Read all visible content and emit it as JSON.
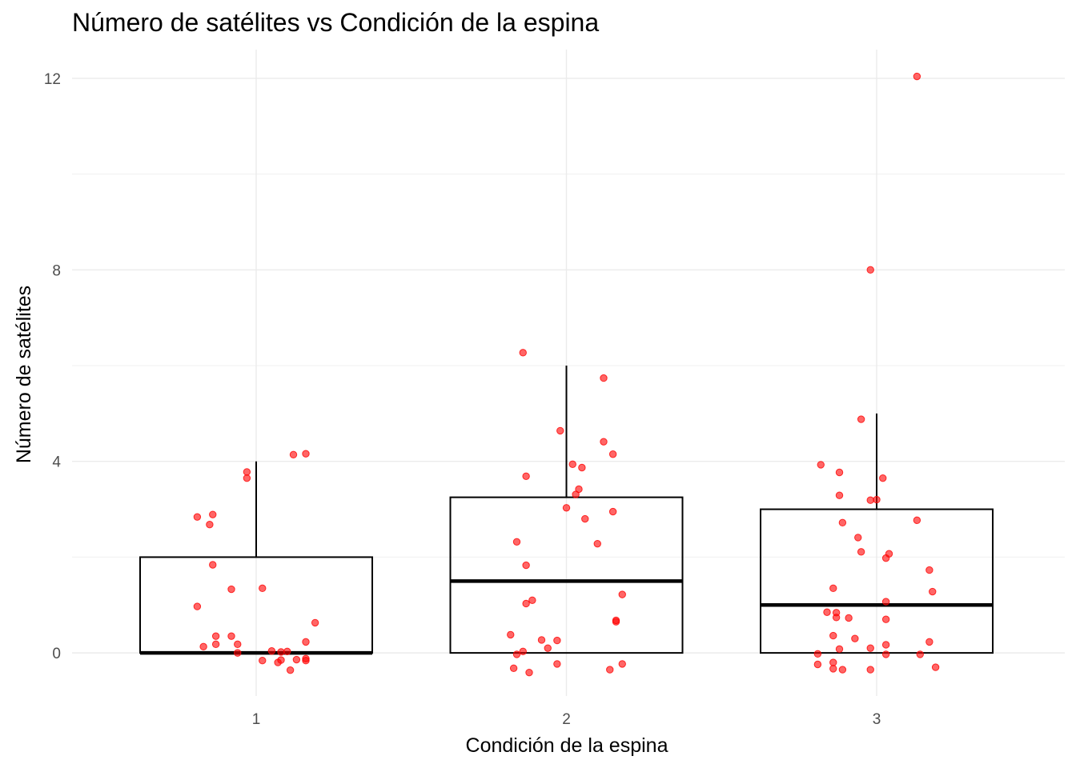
{
  "chart_data": {
    "type": "box",
    "title": "Número de satélites vs Condición de la espina",
    "xlabel": "Condición de la espina",
    "ylabel": "Número de satélites",
    "categories": [
      "1",
      "2",
      "3"
    ],
    "yticks": [
      "0",
      "4",
      "8",
      "12"
    ],
    "ylim": [
      -0.9,
      12.6
    ],
    "grid": true,
    "point_color": "#FF0000",
    "box_stats": [
      {
        "category": "1",
        "min": 0,
        "q1": 0,
        "median": 0,
        "q3": 2,
        "max": 4
      },
      {
        "category": "2",
        "min": 0,
        "q1": 0,
        "median": 1.5,
        "q3": 3.25,
        "max": 6
      },
      {
        "category": "3",
        "min": 0,
        "q1": 0,
        "median": 1,
        "q3": 3,
        "max": 5
      }
    ],
    "points": [
      {
        "x": 0.81,
        "y": 2.84
      },
      {
        "x": 0.86,
        "y": 2.89
      },
      {
        "x": 0.85,
        "y": 2.68
      },
      {
        "x": 0.97,
        "y": 3.78
      },
      {
        "x": 0.97,
        "y": 3.65
      },
      {
        "x": 1.12,
        "y": 4.14
      },
      {
        "x": 1.16,
        "y": 4.16
      },
      {
        "x": 0.86,
        "y": 1.84
      },
      {
        "x": 0.81,
        "y": 0.97
      },
      {
        "x": 0.92,
        "y": 1.33
      },
      {
        "x": 1.02,
        "y": 1.35
      },
      {
        "x": 1.19,
        "y": 0.63
      },
      {
        "x": 0.87,
        "y": 0.35
      },
      {
        "x": 0.92,
        "y": 0.35
      },
      {
        "x": 0.83,
        "y": 0.13
      },
      {
        "x": 0.87,
        "y": 0.18
      },
      {
        "x": 0.94,
        "y": 0.18
      },
      {
        "x": 1.16,
        "y": 0.23
      },
      {
        "x": 0.94,
        "y": 0.0
      },
      {
        "x": 1.05,
        "y": 0.04
      },
      {
        "x": 1.08,
        "y": 0.02
      },
      {
        "x": 1.1,
        "y": 0.03
      },
      {
        "x": 1.02,
        "y": -0.16
      },
      {
        "x": 1.07,
        "y": -0.2
      },
      {
        "x": 1.08,
        "y": -0.15
      },
      {
        "x": 1.13,
        "y": -0.14
      },
      {
        "x": 1.16,
        "y": -0.12
      },
      {
        "x": 1.16,
        "y": -0.16
      },
      {
        "x": 1.11,
        "y": -0.36
      },
      {
        "x": 1.86,
        "y": 6.27
      },
      {
        "x": 2.12,
        "y": 5.74
      },
      {
        "x": 1.98,
        "y": 4.64
      },
      {
        "x": 2.12,
        "y": 4.41
      },
      {
        "x": 2.15,
        "y": 4.15
      },
      {
        "x": 2.02,
        "y": 3.94
      },
      {
        "x": 2.05,
        "y": 3.87
      },
      {
        "x": 1.87,
        "y": 3.69
      },
      {
        "x": 2.04,
        "y": 3.42
      },
      {
        "x": 2.03,
        "y": 3.31
      },
      {
        "x": 2.0,
        "y": 3.03
      },
      {
        "x": 2.15,
        "y": 2.95
      },
      {
        "x": 2.06,
        "y": 2.8
      },
      {
        "x": 1.84,
        "y": 2.32
      },
      {
        "x": 2.1,
        "y": 2.28
      },
      {
        "x": 1.87,
        "y": 1.83
      },
      {
        "x": 2.18,
        "y": 1.22
      },
      {
        "x": 1.89,
        "y": 1.1
      },
      {
        "x": 1.87,
        "y": 1.03
      },
      {
        "x": 2.16,
        "y": 0.68
      },
      {
        "x": 2.16,
        "y": 0.65
      },
      {
        "x": 1.82,
        "y": 0.38
      },
      {
        "x": 1.92,
        "y": 0.27
      },
      {
        "x": 1.97,
        "y": 0.26
      },
      {
        "x": 1.94,
        "y": 0.1
      },
      {
        "x": 1.86,
        "y": 0.03
      },
      {
        "x": 1.84,
        "y": -0.03
      },
      {
        "x": 1.97,
        "y": -0.23
      },
      {
        "x": 2.18,
        "y": -0.23
      },
      {
        "x": 1.83,
        "y": -0.32
      },
      {
        "x": 2.14,
        "y": -0.35
      },
      {
        "x": 1.88,
        "y": -0.41
      },
      {
        "x": 3.13,
        "y": 12.04
      },
      {
        "x": 2.98,
        "y": 8.0
      },
      {
        "x": 2.95,
        "y": 4.88
      },
      {
        "x": 2.82,
        "y": 3.93
      },
      {
        "x": 2.88,
        "y": 3.77
      },
      {
        "x": 3.02,
        "y": 3.65
      },
      {
        "x": 2.88,
        "y": 3.29
      },
      {
        "x": 2.98,
        "y": 3.19
      },
      {
        "x": 3.0,
        "y": 3.2
      },
      {
        "x": 3.13,
        "y": 2.77
      },
      {
        "x": 2.89,
        "y": 2.72
      },
      {
        "x": 2.94,
        "y": 2.41
      },
      {
        "x": 2.95,
        "y": 2.11
      },
      {
        "x": 3.04,
        "y": 2.07
      },
      {
        "x": 3.03,
        "y": 1.98
      },
      {
        "x": 3.17,
        "y": 1.73
      },
      {
        "x": 2.86,
        "y": 1.35
      },
      {
        "x": 3.18,
        "y": 1.28
      },
      {
        "x": 3.03,
        "y": 1.07
      },
      {
        "x": 2.84,
        "y": 0.85
      },
      {
        "x": 2.87,
        "y": 0.84
      },
      {
        "x": 2.87,
        "y": 0.74
      },
      {
        "x": 2.91,
        "y": 0.73
      },
      {
        "x": 3.03,
        "y": 0.7
      },
      {
        "x": 2.86,
        "y": 0.36
      },
      {
        "x": 2.93,
        "y": 0.3
      },
      {
        "x": 3.17,
        "y": 0.23
      },
      {
        "x": 3.03,
        "y": 0.17
      },
      {
        "x": 2.98,
        "y": 0.1
      },
      {
        "x": 2.88,
        "y": 0.08
      },
      {
        "x": 2.81,
        "y": -0.02
      },
      {
        "x": 3.03,
        "y": -0.03
      },
      {
        "x": 3.14,
        "y": -0.03
      },
      {
        "x": 2.81,
        "y": -0.24
      },
      {
        "x": 2.86,
        "y": -0.2
      },
      {
        "x": 2.86,
        "y": -0.33
      },
      {
        "x": 2.89,
        "y": -0.35
      },
      {
        "x": 2.98,
        "y": -0.35
      },
      {
        "x": 3.19,
        "y": -0.3
      }
    ]
  }
}
